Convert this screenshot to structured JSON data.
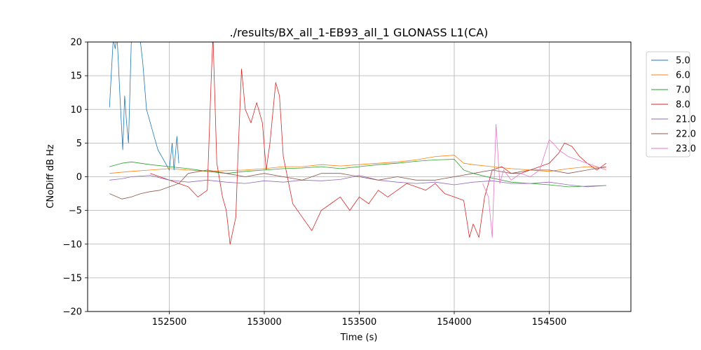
{
  "chart_data": {
    "type": "line",
    "title": "./results/BX_all_1-EB93_all_1 GLONASS L1(CA)",
    "xlabel": "Time (s)",
    "ylabel": "CNoDiff dB Hz",
    "xlim": [
      152070,
      154930
    ],
    "ylim": [
      -20,
      20
    ],
    "xticks": [
      152500,
      153000,
      153500,
      154000,
      154500
    ],
    "yticks": [
      -20,
      -15,
      -10,
      -5,
      0,
      5,
      10,
      15,
      20
    ],
    "xtick_labels": [
      "152500",
      "153000",
      "153500",
      "154000",
      "154500"
    ],
    "ytick_labels": [
      "−20",
      "−15",
      "−10",
      "−5",
      "0",
      "5",
      "10",
      "15",
      "20"
    ],
    "grid": true,
    "legend_position": "outside-right-top",
    "series": [
      {
        "name": "5.0",
        "color": "#1f77b4",
        "x": [
          152185,
          152195,
          152205,
          152215,
          152225,
          152240,
          152255,
          152265,
          152275,
          152285,
          152300,
          152320,
          152340,
          152360,
          152380,
          152400,
          152420,
          152440,
          152460,
          152480,
          152500,
          152515,
          152525,
          152540,
          152550
        ],
        "y": [
          10.3,
          15.5,
          20.5,
          19,
          21,
          12,
          4,
          12,
          8,
          5,
          20,
          21,
          22,
          17,
          10,
          8,
          6,
          4,
          3,
          2,
          1,
          5,
          1,
          6,
          2
        ]
      },
      {
        "name": "6.0",
        "color": "#ff7f0e",
        "x": [
          152185,
          152300,
          152400,
          152500,
          152600,
          152700,
          152800,
          152900,
          153000,
          153100,
          153200,
          153300,
          153400,
          153500,
          153600,
          153700,
          153800,
          153900,
          154000,
          154050,
          154100,
          154200,
          154300,
          154400,
          154500,
          154600,
          154700,
          154800
        ],
        "y": [
          0.5,
          0.8,
          1.0,
          1.2,
          1.0,
          0.8,
          0.9,
          1.0,
          1.2,
          1.5,
          1.5,
          1.8,
          1.6,
          1.8,
          2.0,
          2.2,
          2.5,
          3.0,
          3.2,
          2.0,
          1.8,
          1.5,
          1.2,
          1.0,
          0.8,
          1.2,
          1.5,
          1.3
        ]
      },
      {
        "name": "7.0",
        "color": "#2ca02c",
        "x": [
          152185,
          152250,
          152300,
          152400,
          152500,
          152600,
          152700,
          152800,
          152900,
          153000,
          153100,
          153200,
          153300,
          153400,
          153500,
          153600,
          153700,
          153800,
          153900,
          154000,
          154050,
          154100,
          154200,
          154300,
          154400,
          154500,
          154600,
          154700,
          154800
        ],
        "y": [
          1.5,
          2.0,
          2.2,
          1.8,
          1.5,
          1.2,
          0.8,
          0.5,
          0.8,
          1.0,
          1.2,
          1.3,
          1.5,
          1.2,
          1.5,
          1.8,
          2.0,
          2.3,
          2.5,
          2.6,
          1.0,
          0.5,
          -0.2,
          -0.8,
          -1.0,
          -1.2,
          -1.5,
          -1.4,
          -1.3
        ]
      },
      {
        "name": "8.0",
        "color": "#d62728",
        "x": [
          152400,
          152450,
          152500,
          152550,
          152600,
          152650,
          152700,
          152720,
          152730,
          152750,
          152780,
          152800,
          152820,
          152850,
          152860,
          152880,
          152900,
          152930,
          152960,
          152990,
          153010,
          153030,
          153060,
          153080,
          153100,
          153150,
          153200,
          153250,
          153300,
          153350,
          153400,
          153450,
          153500,
          153550,
          153600,
          153650,
          153700,
          153750,
          153800,
          153850,
          153900,
          153950,
          154000,
          154050,
          154080,
          154100,
          154130,
          154160,
          154200,
          154250,
          154300,
          154350,
          154400,
          154450,
          154500,
          154550,
          154580,
          154620,
          154660,
          154700,
          154750,
          154800
        ],
        "y": [
          0.5,
          0.0,
          -0.5,
          -1.0,
          -1.5,
          -3.0,
          -2.0,
          14.0,
          21.0,
          2.0,
          -3.0,
          -5.0,
          -10.0,
          -6.0,
          2.0,
          16.0,
          10.0,
          8.0,
          11.0,
          8.0,
          1.0,
          5.0,
          14.0,
          12.0,
          3.0,
          -4.0,
          -6.0,
          -8.0,
          -5.0,
          -4.0,
          -3.0,
          -5.0,
          -3.0,
          -4.0,
          -2.0,
          -3.0,
          -2.0,
          -1.0,
          -1.5,
          -2.0,
          -1.0,
          -2.5,
          -3.0,
          -3.5,
          -9.0,
          -7.0,
          -9.0,
          -3.0,
          1.0,
          1.5,
          0.5,
          0.5,
          1.0,
          1.5,
          2.0,
          3.5,
          5.0,
          4.5,
          3.0,
          2.0,
          1.0,
          2.0
        ]
      },
      {
        "name": "21.0",
        "color": "#9467bd",
        "x": [
          152185,
          152250,
          152300,
          152400,
          152500,
          152600,
          152700,
          152800,
          152900,
          153000,
          153100,
          153200,
          153300,
          153400,
          153500,
          153600,
          153700,
          153800,
          153900,
          154000,
          154100,
          154200,
          154300,
          154400,
          154500,
          154600,
          154700,
          154800
        ],
        "y": [
          -0.5,
          -0.3,
          0.0,
          0.2,
          -0.5,
          -0.8,
          -0.5,
          -0.8,
          -1.0,
          -0.6,
          -0.8,
          -0.5,
          -0.6,
          -0.4,
          0.2,
          -0.5,
          -0.8,
          -1.0,
          -0.8,
          -1.2,
          -0.8,
          -0.6,
          -1.0,
          -1.0,
          -0.8,
          -1.2,
          -1.5,
          -1.3
        ]
      },
      {
        "name": "22.0",
        "color": "#8c564b",
        "x": [
          152185,
          152250,
          152300,
          152350,
          152400,
          152450,
          152500,
          152550,
          152600,
          152700,
          152800,
          152900,
          153000,
          153100,
          153200,
          153300,
          153400,
          153500,
          153600,
          153700,
          153800,
          153900,
          154000,
          154100,
          154200,
          154300,
          154400,
          154500,
          154600,
          154700,
          154800
        ],
        "y": [
          -2.5,
          -3.3,
          -3.0,
          -2.5,
          -2.2,
          -2.0,
          -1.5,
          -1.0,
          0.5,
          1.0,
          0.5,
          0.0,
          0.5,
          0.0,
          -0.5,
          0.5,
          0.5,
          0.0,
          -0.5,
          0.0,
          -0.5,
          -0.5,
          0.0,
          0.5,
          1.0,
          0.5,
          1.0,
          1.0,
          0.5,
          1.0,
          1.5
        ]
      },
      {
        "name": "23.0",
        "color": "#e377c2",
        "x": [
          154150,
          154180,
          154200,
          154220,
          154240,
          154260,
          154300,
          154350,
          154400,
          154450,
          154500,
          154520,
          154550,
          154600,
          154650,
          154700,
          154750,
          154800
        ],
        "y": [
          -1.0,
          -3.0,
          -9.0,
          7.8,
          -1.0,
          1.0,
          -0.5,
          0.5,
          0.0,
          1.0,
          5.5,
          5.0,
          4.0,
          3.0,
          2.5,
          2.0,
          1.5,
          1.0
        ]
      }
    ]
  }
}
